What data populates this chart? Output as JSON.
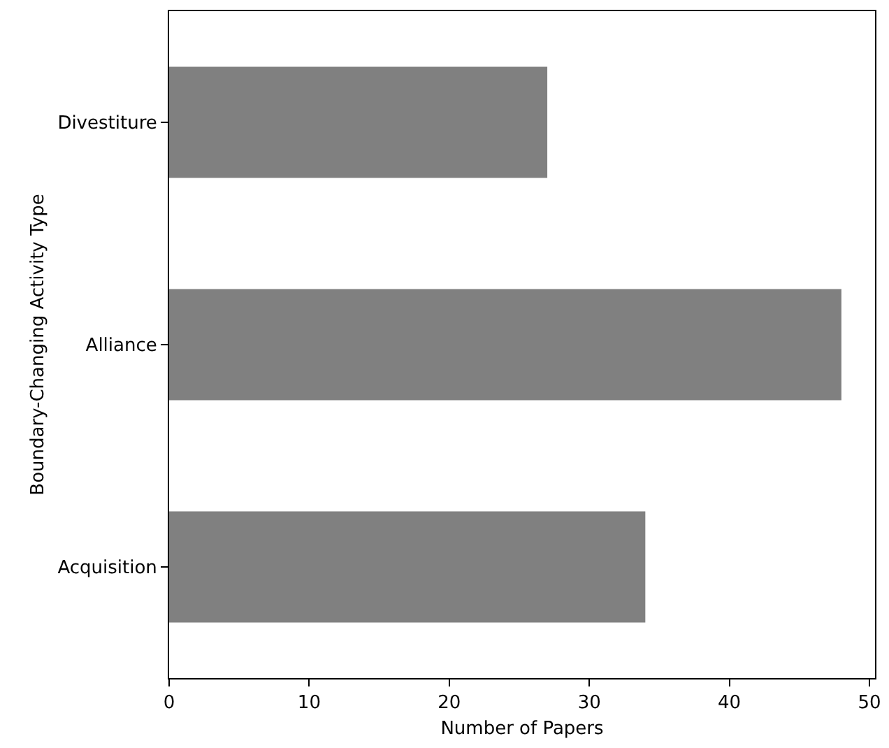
{
  "chart_data": {
    "type": "bar",
    "orientation": "horizontal",
    "xlabel": "Number of Papers",
    "ylabel": "Boundary-Changing Activity Type",
    "categories": [
      "Divestiture",
      "Alliance",
      "Acquisition"
    ],
    "values": [
      27,
      48,
      34
    ],
    "color": "#808080",
    "xlim": [
      0,
      50.4
    ],
    "xticks": [
      0,
      10,
      20,
      30,
      40,
      50
    ],
    "legend": false
  }
}
